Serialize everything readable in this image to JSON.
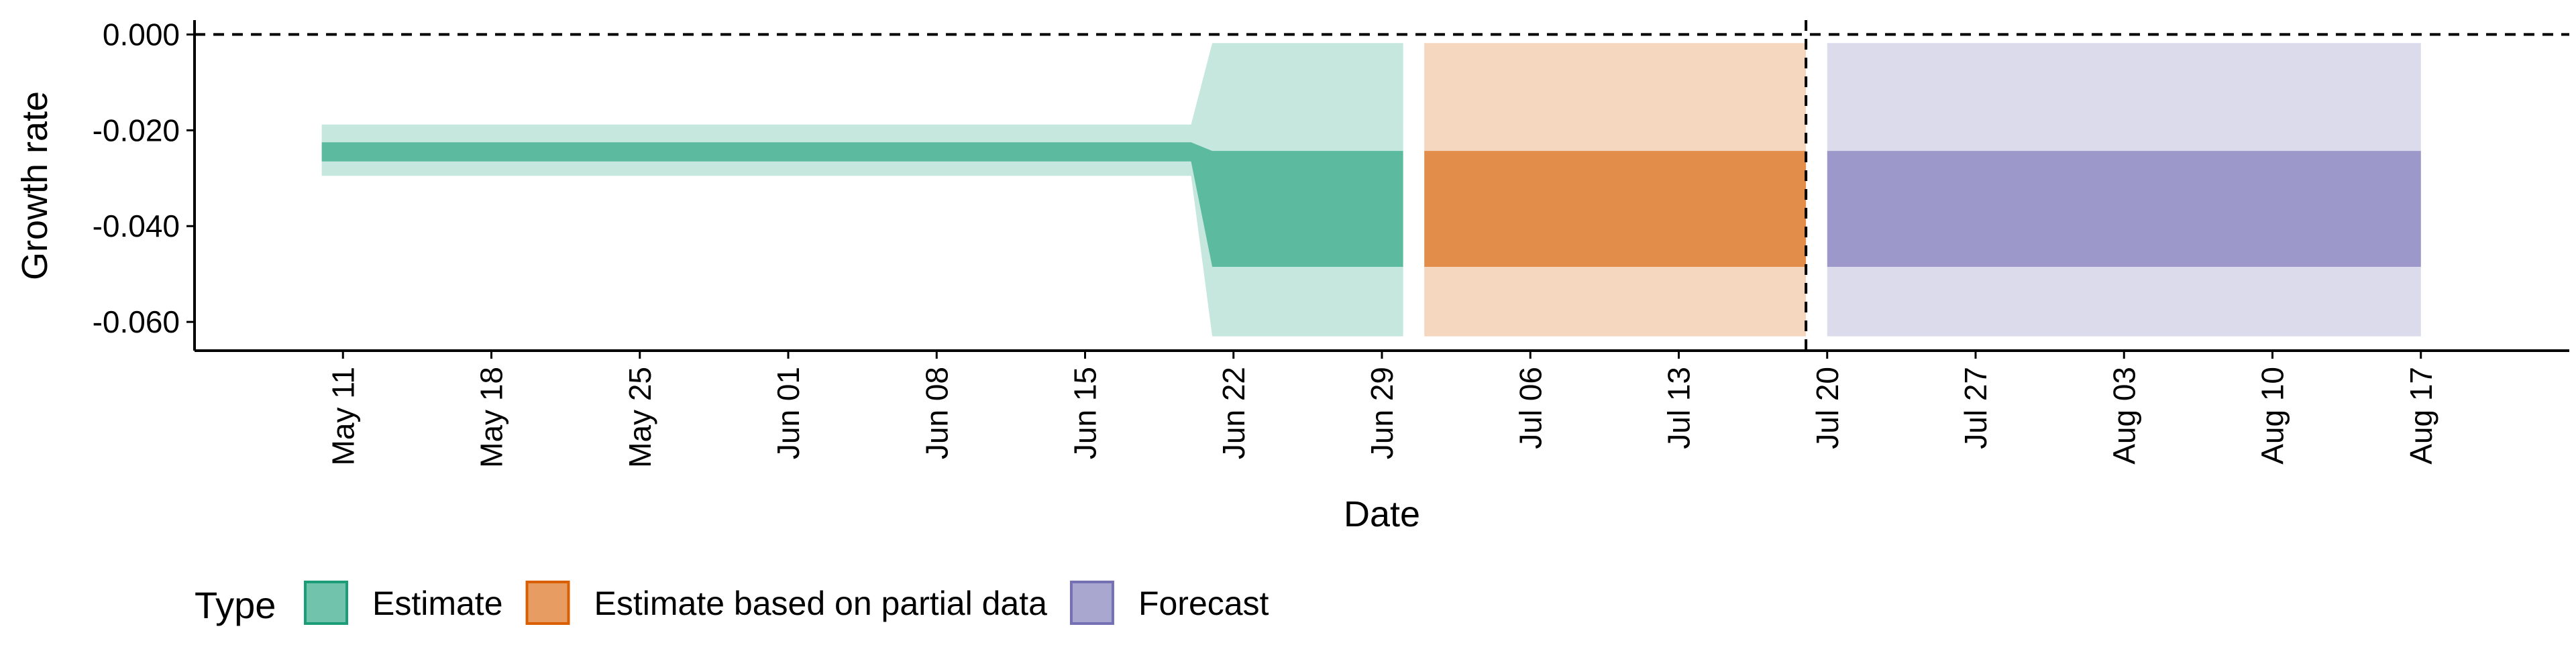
{
  "chart_data": {
    "type": "area",
    "title": "",
    "xlabel": "Date",
    "ylabel": "Growth rate",
    "x_range": [
      "2020-05-04",
      "2020-08-24"
    ],
    "ylim": [
      -0.066,
      0.003
    ],
    "y_ticks": [
      0.0,
      -0.02,
      -0.04,
      -0.06
    ],
    "y_tick_labels": [
      "0.000",
      "-0.020",
      "-0.040",
      "-0.060"
    ],
    "x_ticks": [
      "2020-05-11",
      "2020-05-18",
      "2020-05-25",
      "2020-06-01",
      "2020-06-08",
      "2020-06-15",
      "2020-06-22",
      "2020-06-29",
      "2020-07-06",
      "2020-07-13",
      "2020-07-20",
      "2020-07-27",
      "2020-08-03",
      "2020-08-10",
      "2020-08-17"
    ],
    "x_tick_labels": [
      "May 11",
      "May 18",
      "May 25",
      "Jun 01",
      "Jun 08",
      "Jun 15",
      "Jun 22",
      "Jun 29",
      "Jul 06",
      "Jul 13",
      "Jul 20",
      "Jul 27",
      "Aug 03",
      "Aug 10",
      "Aug 17"
    ],
    "reference_lines": [
      {
        "axis": "y",
        "value": 0.0,
        "style": "dashed"
      },
      {
        "axis": "x",
        "value": "2020-07-19",
        "style": "dashed"
      }
    ],
    "grid": false,
    "legend": {
      "title": "Type",
      "position": "bottom",
      "entries": [
        {
          "label": "Estimate",
          "color": "#1b9e77"
        },
        {
          "label": "Estimate based on partial data",
          "color": "#d95f02"
        },
        {
          "label": "Forecast",
          "color": "#7570b3"
        }
      ]
    },
    "series": [
      {
        "name": "Estimate",
        "color": "#1b9e77",
        "x": [
          "2020-05-10",
          "2020-06-19",
          "2020-06-20",
          "2020-06-21",
          "2020-06-30"
        ],
        "lower_90": [
          -0.0295,
          -0.0295,
          -0.0295,
          -0.063,
          -0.063
        ],
        "upper_90": [
          -0.0188,
          -0.0188,
          -0.0188,
          -0.0018,
          -0.0018
        ],
        "lower_50": [
          -0.0265,
          -0.0265,
          -0.0265,
          -0.0485,
          -0.0485
        ],
        "upper_50": [
          -0.0225,
          -0.0225,
          -0.0225,
          -0.0243,
          -0.0243
        ]
      },
      {
        "name": "Estimate based on partial data",
        "color": "#d95f02",
        "x": [
          "2020-07-01",
          "2020-07-19"
        ],
        "lower_90": [
          -0.063,
          -0.063
        ],
        "upper_90": [
          -0.0018,
          -0.0018
        ],
        "lower_50": [
          -0.0485,
          -0.0485
        ],
        "upper_50": [
          -0.0243,
          -0.0243
        ]
      },
      {
        "name": "Forecast",
        "color": "#7570b3",
        "x": [
          "2020-07-20",
          "2020-08-17"
        ],
        "lower_90": [
          -0.063,
          -0.063
        ],
        "upper_90": [
          -0.0018,
          -0.0018
        ],
        "lower_50": [
          -0.0485,
          -0.0485
        ],
        "upper_50": [
          -0.0243,
          -0.0243
        ]
      }
    ]
  }
}
